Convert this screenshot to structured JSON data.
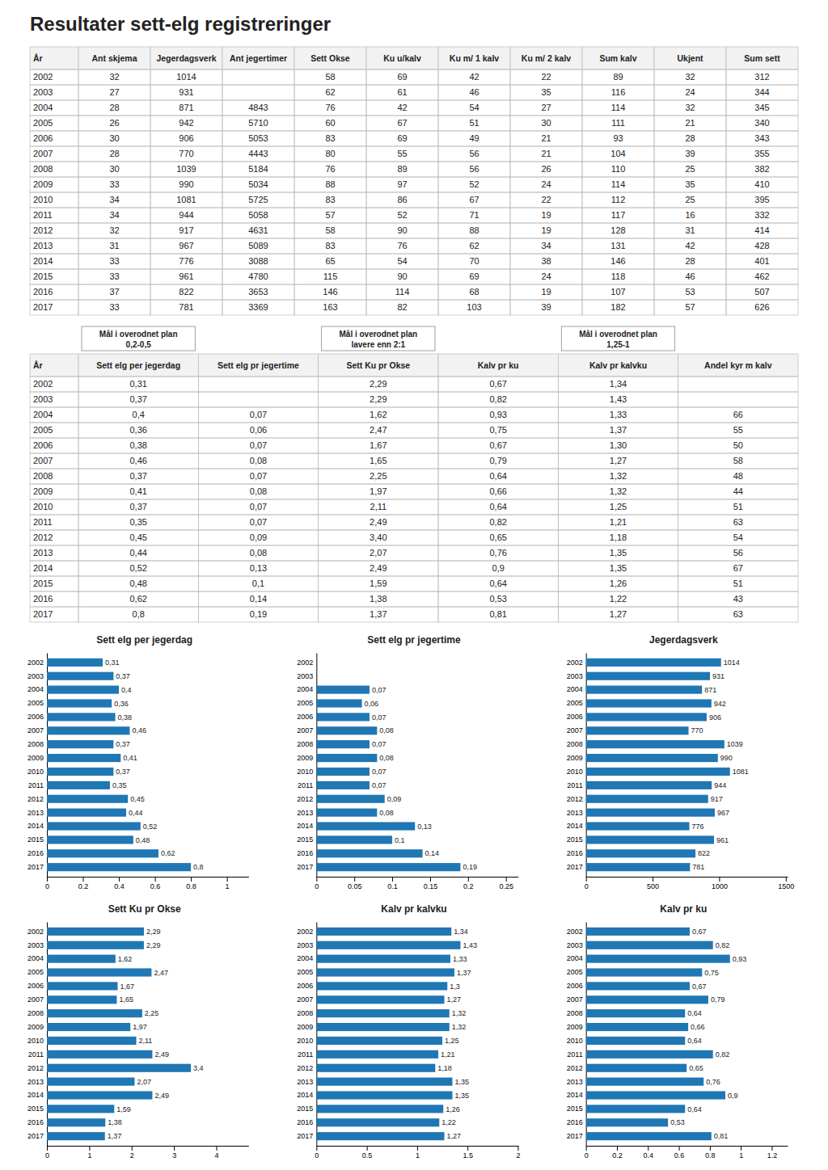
{
  "title": "Resultater sett-elg registreringer",
  "chart_data": [
    {
      "type": "table",
      "xlabel": "År",
      "categories": [
        "2002",
        "2003",
        "2004",
        "2005",
        "2006",
        "2007",
        "2008",
        "2009",
        "2010",
        "2011",
        "2012",
        "2013",
        "2014",
        "2015",
        "2016",
        "2017"
      ],
      "series": [
        {
          "name": "Ant skjema",
          "values": [
            32,
            27,
            28,
            26,
            30,
            28,
            30,
            33,
            34,
            34,
            32,
            31,
            33,
            33,
            37,
            33
          ]
        },
        {
          "name": "Jegerdagsverk",
          "values": [
            1014,
            931,
            871,
            942,
            906,
            770,
            1039,
            990,
            1081,
            944,
            917,
            967,
            776,
            961,
            822,
            781
          ]
        },
        {
          "name": "Ant jegertimer",
          "values": [
            null,
            null,
            4843,
            5710,
            5053,
            4443,
            5184,
            5034,
            5725,
            5058,
            4631,
            5089,
            3088,
            4780,
            3653,
            3369
          ]
        },
        {
          "name": "Sett Okse",
          "values": [
            58,
            62,
            76,
            60,
            83,
            80,
            76,
            88,
            83,
            57,
            58,
            83,
            65,
            115,
            146,
            163
          ]
        },
        {
          "name": "Ku u/kalv",
          "values": [
            69,
            61,
            42,
            67,
            69,
            55,
            89,
            97,
            86,
            52,
            90,
            76,
            54,
            90,
            114,
            82
          ]
        },
        {
          "name": "Ku m/ 1 kalv",
          "values": [
            42,
            46,
            54,
            51,
            49,
            56,
            56,
            52,
            67,
            71,
            88,
            62,
            70,
            69,
            68,
            103
          ]
        },
        {
          "name": "Ku m/ 2 kalv",
          "values": [
            22,
            35,
            27,
            30,
            21,
            21,
            26,
            24,
            22,
            19,
            19,
            34,
            38,
            24,
            19,
            39
          ]
        },
        {
          "name": "Sum kalv",
          "values": [
            89,
            116,
            114,
            111,
            93,
            104,
            110,
            114,
            112,
            117,
            128,
            131,
            146,
            118,
            107,
            182
          ]
        },
        {
          "name": "Ukjent",
          "values": [
            32,
            24,
            32,
            21,
            28,
            39,
            25,
            35,
            25,
            16,
            31,
            42,
            28,
            46,
            53,
            57
          ]
        },
        {
          "name": "Sum sett",
          "values": [
            312,
            344,
            345,
            340,
            343,
            355,
            382,
            410,
            395,
            332,
            414,
            428,
            401,
            462,
            507,
            626
          ]
        }
      ]
    },
    {
      "type": "table",
      "xlabel": "År",
      "categories": [
        "2002",
        "2003",
        "2004",
        "2005",
        "2006",
        "2007",
        "2008",
        "2009",
        "2010",
        "2011",
        "2012",
        "2013",
        "2014",
        "2015",
        "2016",
        "2017"
      ],
      "series": [
        {
          "name": "Sett elg per jegerdag",
          "values": [
            0.31,
            0.37,
            0.4,
            0.36,
            0.38,
            0.46,
            0.37,
            0.41,
            0.37,
            0.35,
            0.45,
            0.44,
            0.52,
            0.48,
            0.62,
            0.8
          ],
          "value_labels": [
            "0,31",
            "0,37",
            "0,4",
            "0,36",
            "0,38",
            "0,46",
            "0,37",
            "0,41",
            "0,37",
            "0,35",
            "0,45",
            "0,44",
            "0,52",
            "0,48",
            "0,62",
            "0,8"
          ]
        },
        {
          "name": "Sett elg pr jegertime",
          "values": [
            null,
            null,
            0.07,
            0.06,
            0.07,
            0.08,
            0.07,
            0.08,
            0.07,
            0.07,
            0.09,
            0.08,
            0.13,
            0.1,
            0.14,
            0.19
          ],
          "value_labels": [
            null,
            null,
            "0,07",
            "0,06",
            "0,07",
            "0,08",
            "0,07",
            "0,08",
            "0,07",
            "0,07",
            "0,09",
            "0,08",
            "0,13",
            "0,1",
            "0,14",
            "0,19"
          ]
        },
        {
          "name": "Sett Ku pr Okse",
          "values": [
            2.29,
            2.29,
            1.62,
            2.47,
            1.67,
            1.65,
            2.25,
            1.97,
            2.11,
            2.49,
            3.4,
            2.07,
            2.49,
            1.59,
            1.38,
            1.37
          ],
          "value_labels": [
            "2,29",
            "2,29",
            "1,62",
            "2,47",
            "1,67",
            "1,65",
            "2,25",
            "1,97",
            "2,11",
            "2,49",
            "3,40",
            "2,07",
            "2,49",
            "1,59",
            "1,38",
            "1,37"
          ]
        },
        {
          "name": "Kalv pr ku",
          "values": [
            0.67,
            0.82,
            0.93,
            0.75,
            0.67,
            0.79,
            0.64,
            0.66,
            0.64,
            0.82,
            0.65,
            0.76,
            0.9,
            0.64,
            0.53,
            0.81
          ],
          "value_labels": [
            "0,67",
            "0,82",
            "0,93",
            "0,75",
            "0,67",
            "0,79",
            "0,64",
            "0,66",
            "0,64",
            "0,82",
            "0,65",
            "0,76",
            "0,9",
            "0,64",
            "0,53",
            "0,81"
          ]
        },
        {
          "name": "Kalv pr kalvku",
          "values": [
            1.34,
            1.43,
            1.33,
            1.37,
            1.3,
            1.27,
            1.32,
            1.32,
            1.25,
            1.21,
            1.18,
            1.35,
            1.35,
            1.26,
            1.22,
            1.27
          ],
          "value_labels": [
            "1,34",
            "1,43",
            "1,33",
            "1,37",
            "1,30",
            "1,27",
            "1,32",
            "1,32",
            "1,25",
            "1,21",
            "1,18",
            "1,35",
            "1,35",
            "1,26",
            "1,22",
            "1,27"
          ]
        },
        {
          "name": "Andel kyr m kalv",
          "values": [
            null,
            null,
            66,
            55,
            50,
            58,
            48,
            44,
            51,
            63,
            54,
            56,
            67,
            51,
            43,
            63
          ]
        }
      ],
      "annotations": [
        {
          "series": 0,
          "lines": [
            "Mål i overodnet plan",
            "0,2-0,5"
          ]
        },
        {
          "series": 2,
          "lines": [
            "Mål i overodnet plan",
            "lavere enn 2:1"
          ]
        },
        {
          "series": 4,
          "lines": [
            "Mål i overodnet plan",
            "1,25-1"
          ]
        }
      ]
    },
    {
      "type": "bar",
      "orientation": "horizontal",
      "data_labels": true,
      "title": "Sett elg per jegerdag",
      "categories": [
        "2002",
        "2003",
        "2004",
        "2005",
        "2006",
        "2007",
        "2008",
        "2009",
        "2010",
        "2011",
        "2012",
        "2013",
        "2014",
        "2015",
        "2016",
        "2017"
      ],
      "values": [
        0.31,
        0.37,
        0.4,
        0.36,
        0.38,
        0.46,
        0.37,
        0.41,
        0.37,
        0.35,
        0.45,
        0.44,
        0.52,
        0.48,
        0.62,
        0.8
      ],
      "value_labels": [
        "0,31",
        "0,37",
        "0,4",
        "0,36",
        "0,38",
        "0,46",
        "0,37",
        "0,41",
        "0,37",
        "0,35",
        "0,45",
        "0,44",
        "0,52",
        "0,48",
        "0,62",
        "0,8"
      ],
      "xlim": [
        0,
        1.12
      ],
      "xticks": [
        0,
        0.2,
        0.4,
        0.6,
        0.8,
        1
      ]
    },
    {
      "type": "bar",
      "orientation": "horizontal",
      "data_labels": true,
      "title": "Sett elg pr jegertime",
      "categories": [
        "2002",
        "2003",
        "2004",
        "2005",
        "2006",
        "2007",
        "2008",
        "2009",
        "2010",
        "2011",
        "2012",
        "2013",
        "2014",
        "2015",
        "2016",
        "2017"
      ],
      "values": [
        null,
        null,
        0.07,
        0.06,
        0.07,
        0.08,
        0.07,
        0.08,
        0.07,
        0.07,
        0.09,
        0.08,
        0.13,
        0.1,
        0.14,
        0.19
      ],
      "value_labels": [
        null,
        null,
        "0,07",
        "0,06",
        "0,07",
        "0,08",
        "0,07",
        "0,08",
        "0,07",
        "0,07",
        "0,09",
        "0,08",
        "0,13",
        "0,1",
        "0,14",
        "0,19"
      ],
      "xlim": [
        0,
        0.266
      ],
      "xticks": [
        0,
        0.05,
        0.1,
        0.15,
        0.2,
        0.25
      ]
    },
    {
      "type": "bar",
      "orientation": "horizontal",
      "data_labels": true,
      "title": "Jegerdagsverk",
      "categories": [
        "2002",
        "2003",
        "2004",
        "2005",
        "2006",
        "2007",
        "2008",
        "2009",
        "2010",
        "2011",
        "2012",
        "2013",
        "2014",
        "2015",
        "2016",
        "2017"
      ],
      "values": [
        1014,
        931,
        871,
        942,
        906,
        770,
        1039,
        990,
        1081,
        944,
        917,
        967,
        776,
        961,
        822,
        781
      ],
      "xlim": [
        0,
        1513.4
      ],
      "xticks": [
        0,
        500,
        1000,
        1500
      ]
    },
    {
      "type": "bar",
      "orientation": "horizontal",
      "data_labels": true,
      "title": "Sett Ku pr Okse",
      "categories": [
        "2002",
        "2003",
        "2004",
        "2005",
        "2006",
        "2007",
        "2008",
        "2009",
        "2010",
        "2011",
        "2012",
        "2013",
        "2014",
        "2015",
        "2016",
        "2017"
      ],
      "values": [
        2.29,
        2.29,
        1.62,
        2.47,
        1.67,
        1.65,
        2.25,
        1.97,
        2.11,
        2.49,
        3.4,
        2.07,
        2.49,
        1.59,
        1.38,
        1.37
      ],
      "value_labels": [
        "2,29",
        "2,29",
        "1,62",
        "2,47",
        "1,67",
        "1,65",
        "2,25",
        "1,97",
        "2,11",
        "2,49",
        "3,4",
        "2,07",
        "2,49",
        "1,59",
        "1,38",
        "1,37"
      ],
      "xlim": [
        0,
        4.76
      ],
      "xticks": [
        0,
        1,
        2,
        3,
        4
      ]
    },
    {
      "type": "bar",
      "orientation": "horizontal",
      "data_labels": true,
      "title": "Kalv pr kalvku",
      "categories": [
        "2002",
        "2003",
        "2004",
        "2005",
        "2006",
        "2007",
        "2008",
        "2009",
        "2010",
        "2011",
        "2012",
        "2013",
        "2014",
        "2015",
        "2016",
        "2017"
      ],
      "values": [
        1.34,
        1.43,
        1.33,
        1.37,
        1.3,
        1.27,
        1.32,
        1.32,
        1.25,
        1.21,
        1.18,
        1.35,
        1.35,
        1.26,
        1.22,
        1.27
      ],
      "value_labels": [
        "1,34",
        "1,43",
        "1,33",
        "1,37",
        "1,3",
        "1,27",
        "1,32",
        "1,32",
        "1,25",
        "1,21",
        "1,18",
        "1,35",
        "1,35",
        "1,26",
        "1,22",
        "1,27"
      ],
      "xlim": [
        0,
        2.002
      ],
      "xticks": [
        0,
        0.5,
        1,
        1.5,
        2
      ]
    },
    {
      "type": "bar",
      "orientation": "horizontal",
      "data_labels": true,
      "title": "Kalv pr ku",
      "categories": [
        "2002",
        "2003",
        "2004",
        "2005",
        "2006",
        "2007",
        "2008",
        "2009",
        "2010",
        "2011",
        "2012",
        "2013",
        "2014",
        "2015",
        "2016",
        "2017"
      ],
      "values": [
        0.67,
        0.82,
        0.93,
        0.75,
        0.67,
        0.79,
        0.64,
        0.66,
        0.64,
        0.82,
        0.65,
        0.76,
        0.9,
        0.64,
        0.53,
        0.81
      ],
      "value_labels": [
        "0,67",
        "0,82",
        "0,93",
        "0,75",
        "0,67",
        "0,79",
        "0,64",
        "0,66",
        "0,64",
        "0,82",
        "0,65",
        "0,76",
        "0,9",
        "0,64",
        "0,53",
        "0,81"
      ],
      "xlim": [
        0,
        1.302
      ],
      "xticks": [
        0,
        0.2,
        0.4,
        0.6,
        0.8,
        1,
        1.2
      ]
    }
  ]
}
